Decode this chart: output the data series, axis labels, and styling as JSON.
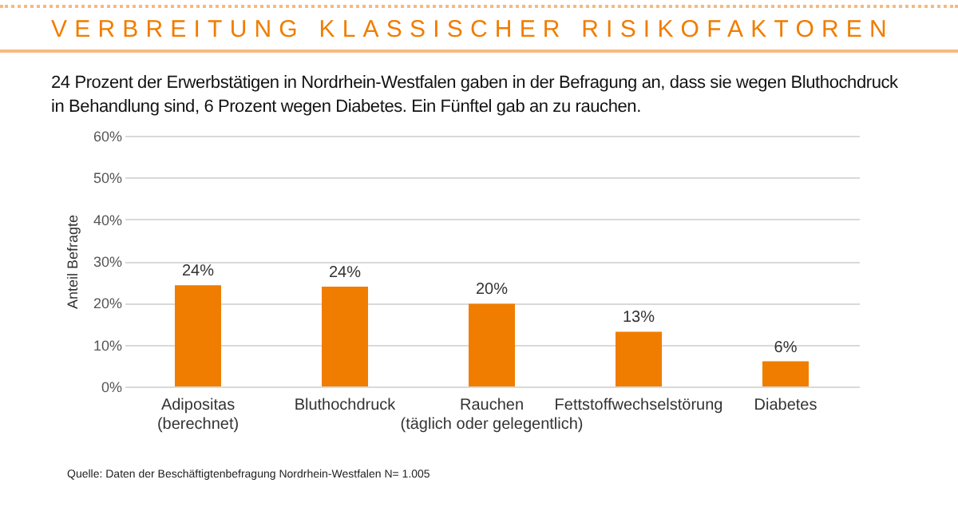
{
  "chart_data": {
    "type": "bar",
    "title": "VERBREITUNG KLASSISCHER RISIKOFAKTOREN",
    "subtitle": "24 Prozent der Erwerbstätigen in Nordrhein-Westfalen gaben in der Befragung an, dass sie wegen Bluthochdruck in Behandlung sind, 6 Prozent wegen Diabetes. Ein Fünftel gab an zu rauchen.",
    "ylabel": "Anteil Befragte",
    "categories": [
      "Adipositas\n(berechnet)",
      "Bluthochdruck",
      "Rauchen\n(täglich oder gelegentlich)",
      "Fettstoffwechselstörung",
      "Diabetes"
    ],
    "values": [
      24.2,
      23.9,
      19.8,
      13.1,
      6.0
    ],
    "value_labels": [
      "24%",
      "24%",
      "20%",
      "13%",
      "6%"
    ],
    "color": "#f07d00",
    "ylim": [
      0,
      60
    ],
    "yticks": [
      {
        "value": 0,
        "label": "0%"
      },
      {
        "value": 10,
        "label": "10%"
      },
      {
        "value": 20,
        "label": "20%"
      },
      {
        "value": 30,
        "label": "30%"
      },
      {
        "value": 40,
        "label": "40%"
      },
      {
        "value": 50,
        "label": "50%"
      },
      {
        "value": 60,
        "label": "60%"
      }
    ],
    "grid": "y",
    "annotations": [
      "Quelle: Daten der Beschäftigtenbefragung Nordrhein-Westfalen N= 1.005"
    ]
  }
}
